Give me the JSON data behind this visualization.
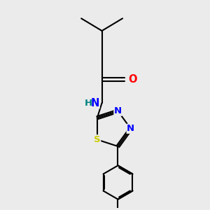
{
  "background_color": "#ebebeb",
  "bond_width": 1.5,
  "atom_colors": {
    "O": "#ff0000",
    "N": "#0000ff",
    "S": "#cccc00",
    "H": "#008080",
    "C": "#000000"
  },
  "font_size": 9.5,
  "fig_size": [
    3.0,
    3.0
  ],
  "dpi": 100,
  "xlim": [
    0,
    10
  ],
  "ylim": [
    0,
    10
  ]
}
